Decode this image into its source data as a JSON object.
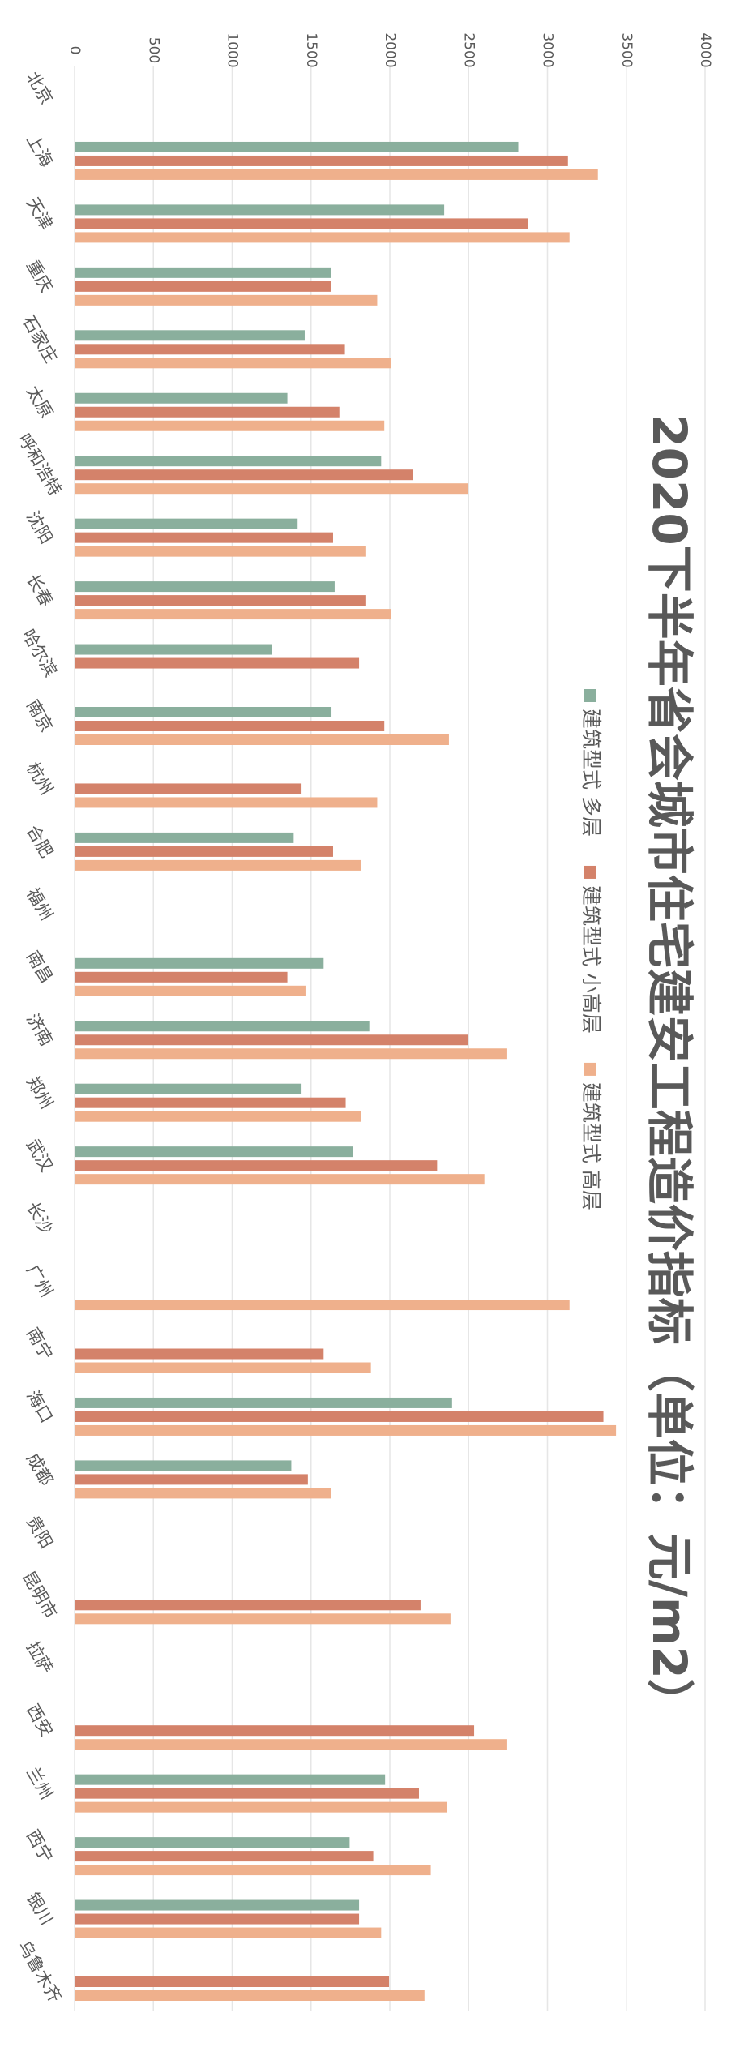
{
  "chart_data": {
    "type": "bar",
    "orientation": "horizontal",
    "title": "2020下半年省会城市住宅建安工程造价指标（单位：元/m2）",
    "categories": [
      "北京",
      "上海",
      "天津",
      "重庆",
      "石家庄",
      "太原",
      "呼和浩特",
      "沈阳",
      "长春",
      "哈尔滨",
      "南京",
      "杭州",
      "合肥",
      "福州",
      "南昌",
      "济南",
      "郑州",
      "武汉",
      "长沙",
      "广州",
      "南宁",
      "海口",
      "成都",
      "贵阳",
      "昆明市",
      "拉萨",
      "西安",
      "兰州",
      "西宁",
      "银川",
      "乌鲁木齐"
    ],
    "series": [
      {
        "name": "建筑型式 多层",
        "color": "#8aaf9d",
        "values": [
          null,
          2815,
          2345,
          1625,
          1460,
          1350,
          1945,
          1415,
          1650,
          1250,
          1630,
          null,
          1390,
          null,
          1580,
          1870,
          1440,
          1765,
          null,
          null,
          null,
          2395,
          1375,
          null,
          null,
          null,
          null,
          1970,
          1745,
          1805,
          null
        ]
      },
      {
        "name": "建筑型式 小高层",
        "color": "#d4826a",
        "values": [
          null,
          3130,
          2875,
          1625,
          1715,
          1680,
          2145,
          1640,
          1845,
          1805,
          1965,
          1440,
          1640,
          null,
          1350,
          2495,
          1720,
          2300,
          null,
          null,
          1580,
          3355,
          1480,
          null,
          2195,
          null,
          2535,
          2185,
          1895,
          1805,
          1995
        ]
      },
      {
        "name": "建筑型式 高层",
        "color": "#efb08c",
        "values": [
          null,
          3320,
          3140,
          1920,
          2005,
          1965,
          2495,
          1845,
          2010,
          null,
          2375,
          1920,
          1815,
          null,
          1465,
          2740,
          1820,
          2600,
          null,
          3140,
          1880,
          3435,
          1625,
          null,
          2385,
          null,
          2740,
          2360,
          2260,
          1945,
          2220
        ]
      }
    ],
    "xlim": [
      0,
      4000
    ],
    "xticks": [
      0,
      500,
      1000,
      1500,
      2000,
      2500,
      3000,
      3500,
      4000
    ],
    "grid": true
  }
}
